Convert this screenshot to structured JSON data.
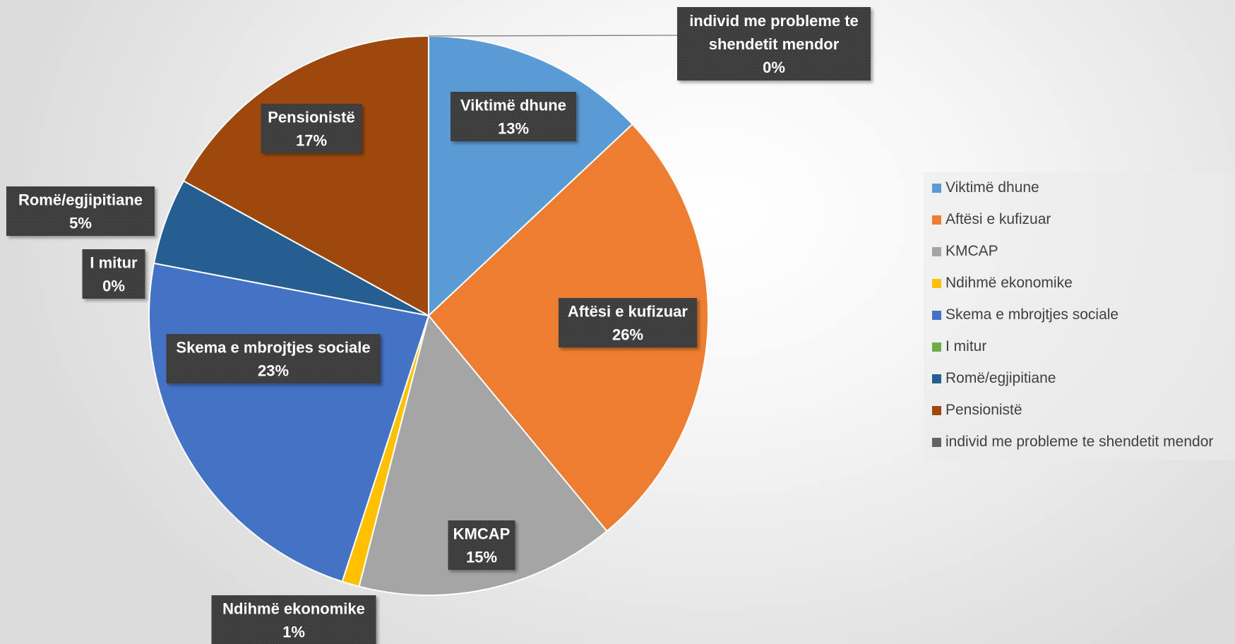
{
  "chart_data": {
    "type": "pie",
    "title": "",
    "slices": [
      {
        "label": "Viktimë dhune",
        "value": 13,
        "display": "13%",
        "color": "#5B9BD5"
      },
      {
        "label": "Aftësi e kufizuar",
        "value": 26,
        "display": "26%",
        "color": "#ED7D31"
      },
      {
        "label": "KMCAP",
        "value": 15,
        "display": "15%",
        "color": "#A5A5A5"
      },
      {
        "label": "Ndihmë ekonomike",
        "value": 1,
        "display": "1%",
        "color": "#FFC000"
      },
      {
        "label": "Skema e mbrojtjes sociale",
        "value": 23,
        "display": "23%",
        "color": "#4472C4"
      },
      {
        "label": "I mitur",
        "value": 0,
        "display": "0%",
        "color": "#70AD47"
      },
      {
        "label": "Romë/egjipitiane",
        "value": 5,
        "display": "5%",
        "color": "#255E91"
      },
      {
        "label": "Pensionistë",
        "value": 17,
        "display": "17%",
        "color": "#9E480E"
      },
      {
        "label": "individ me probleme te shendetit mendor",
        "value": 0,
        "display": "0%",
        "color": "#636363"
      }
    ],
    "legend_position": "right",
    "data_labels": "dark callout boxes"
  }
}
